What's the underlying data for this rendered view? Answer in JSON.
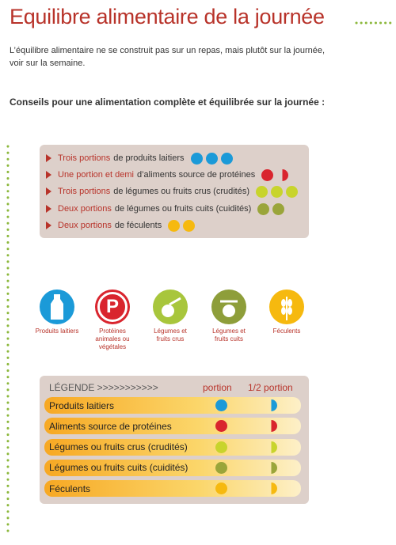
{
  "header": {
    "title": "Equilibre alimentaire de la journée"
  },
  "intro": "L’équilibre alimentaire ne se construit pas sur un repas, mais plutôt sur la journée, voir sur la semaine.",
  "subtitle": "Conseils pour une alimentation complète et équilibrée sur la journée :",
  "advice": [
    {
      "highlight": "Trois portions",
      "text": "de produits laitiers"
    },
    {
      "highlight": "Une portion et demi",
      "text": "d’aliments source de protéines"
    },
    {
      "highlight": "Trois portions",
      "text": "de légumes ou fruits crus (crudités)"
    },
    {
      "highlight": "Deux portions",
      "text": "de légumes ou fruits cuits (cuidités)"
    },
    {
      "highlight": "Deux portions",
      "text": "de féculents"
    }
  ],
  "icons": [
    {
      "label": "Produits laitiers"
    },
    {
      "symbol": "P",
      "label": "Protéines animales ou végétales"
    },
    {
      "label": "Légumes et fruits crus"
    },
    {
      "label": "Légumes et fruits cuits"
    },
    {
      "label": "Féculents"
    }
  ],
  "legend": {
    "title": "LÉGENDE >>>>>>>>>>>",
    "portion": "portion",
    "half_portion": "1/2 portion",
    "rows": [
      "Produits laitiers",
      "Aliments source de protéines",
      "Légumes ou fruits crus (crudités)",
      "Légumes ou fruits cuits (cuidités)",
      "Féculents"
    ]
  }
}
